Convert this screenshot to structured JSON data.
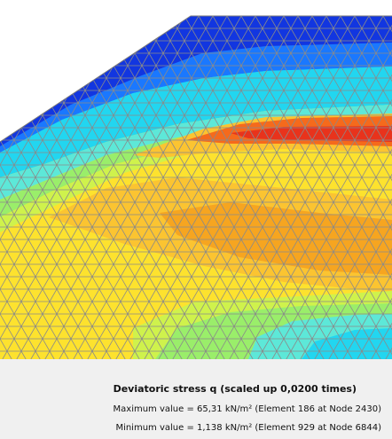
{
  "plot": {
    "quantity": "Deviatoric stress q",
    "contour_colors": {
      "deep_blue": "#1236e0",
      "blue": "#1a78ff",
      "cyan": "#22d6f0",
      "light_cyan": "#5de8d8",
      "green": "#9aee6a",
      "yellow_green": "#cff24c",
      "yellow": "#fde22e",
      "light_orange": "#fbc431",
      "orange": "#f6a520",
      "deep_orange": "#f56a1c",
      "red": "#e8331c"
    },
    "mesh_color": "#8a8a8a",
    "background": "#ffffff"
  },
  "caption": {
    "title": "Deviatoric stress q (scaled up 0,0200 times)",
    "max_line": "Maximum value = 65,31 kN/m² (Element 186 at Node 2430)",
    "min_line": "Minimum value = 1,138 kN/m² (Element 929 at Node 6844)"
  }
}
